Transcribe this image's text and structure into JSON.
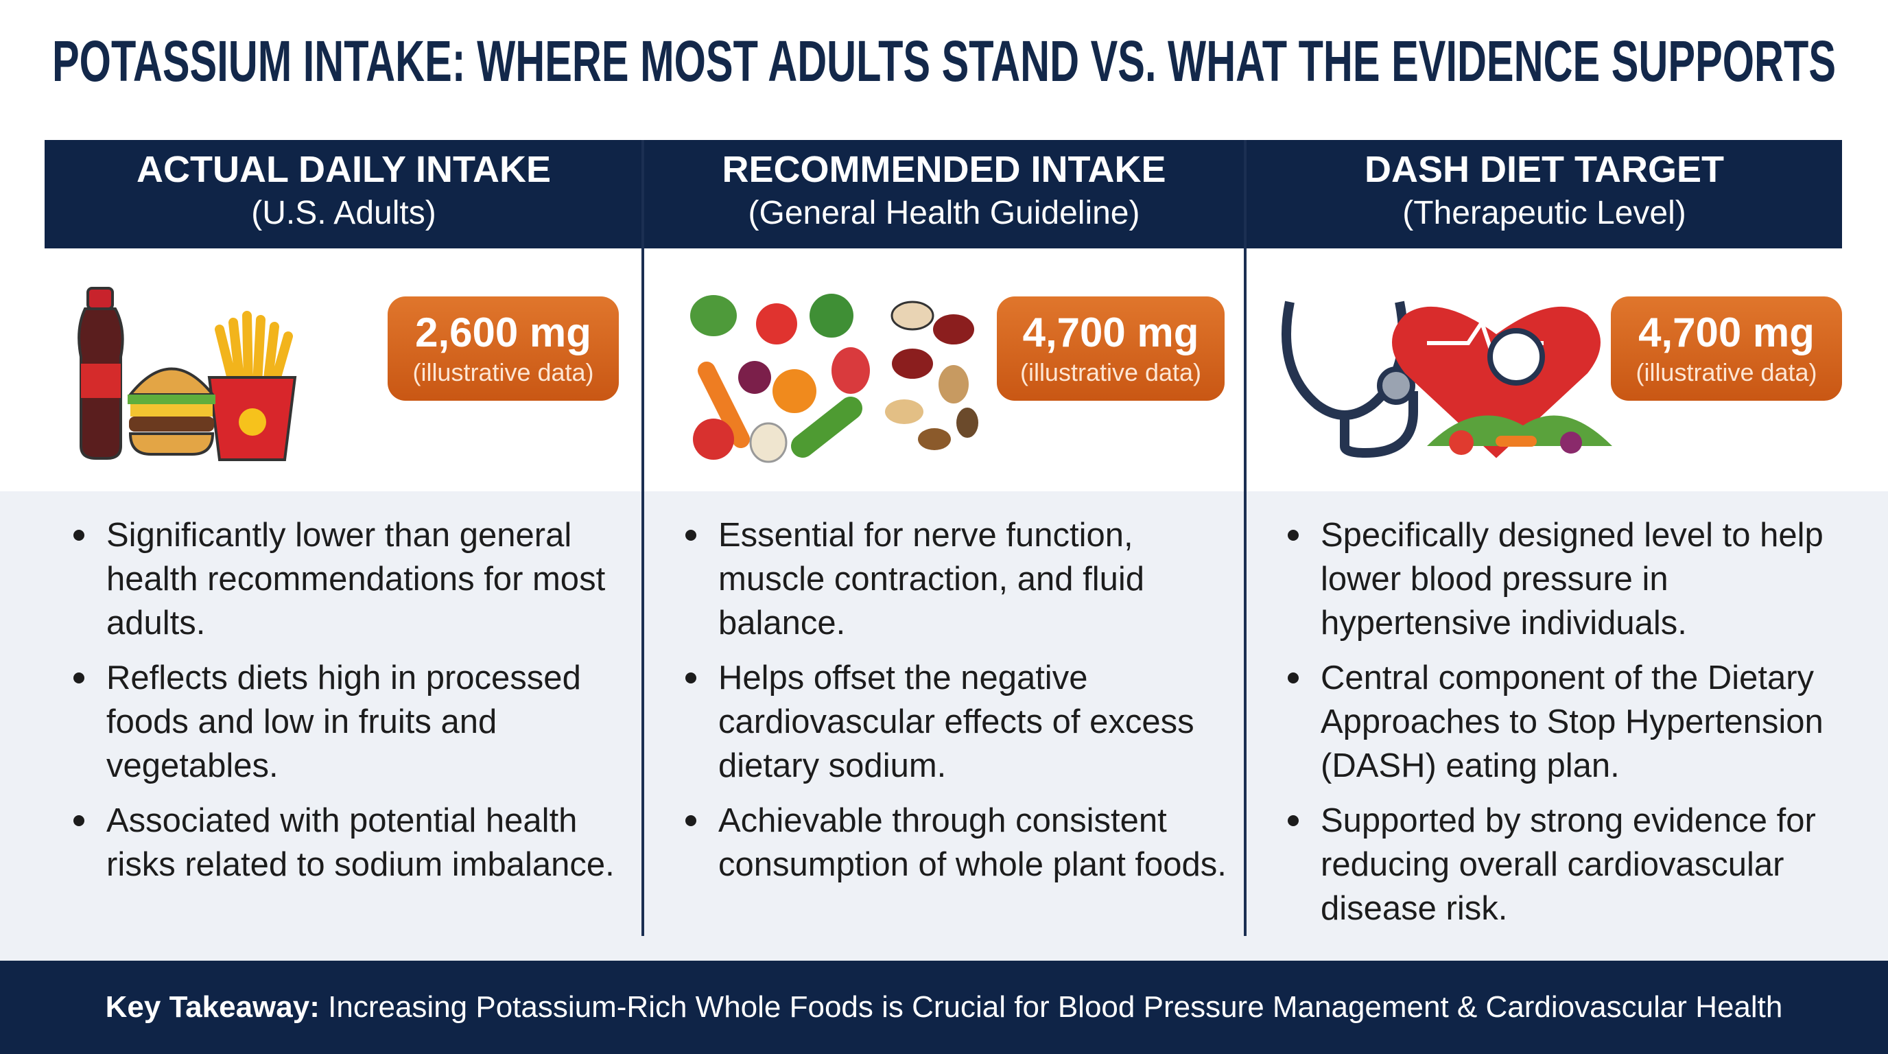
{
  "header": {
    "title": "POTASSIUM INTAKE: WHERE MOST ADULTS STAND VS. WHAT THE EVIDENCE SUPPORTS"
  },
  "columns": [
    {
      "heading": "ACTUAL DAILY INTAKE",
      "subheading": "(U.S. Adults)",
      "value": "2,600 mg",
      "note": "(illustrative data)",
      "bullets": [
        "Significantly lower than general health recommendations for most adults.",
        "Reflects diets high in processed foods and low in fruits and vegetables.",
        "Associated with potential health risks related to sodium imbalance."
      ]
    },
    {
      "heading": "RECOMMENDED INTAKE",
      "subheading": "(General Health Guideline)",
      "value": "4,700 mg",
      "note": "(illustrative data)",
      "bullets": [
        "Essential for nerve function, muscle contraction, and fluid balance.",
        "Helps offset the negative cardiovascular effects of excess dietary sodium.",
        "Achievable through consistent consumption of whole plant foods."
      ]
    },
    {
      "heading": "DASH DIET TARGET",
      "subheading": "(Therapeutic Level)",
      "value": "4,700 mg",
      "note": "(illustrative data)",
      "bullets": [
        "Specifically designed level to help lower blood pressure in hypertensive individuals.",
        "Central component of the Dietary Approaches to Stop Hypertension (DASH) eating plan.",
        "Supported by strong evidence for reducing overall cardiovascular disease risk."
      ]
    }
  ],
  "footer": {
    "label": "Key Takeaway:",
    "text": "Increasing Potassium-Rich Whole Foods is Crucial for Blood Pressure Management & Cardiovascular Health"
  }
}
